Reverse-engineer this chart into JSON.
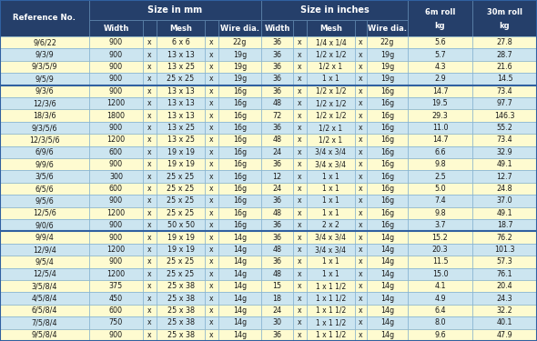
{
  "rows": [
    [
      "9/6/22",
      "900",
      "6 x 6",
      "22g",
      "36",
      "1/4 x 1/4",
      "22g",
      "5.6",
      "27.8"
    ],
    [
      "9/3/9",
      "900",
      "13 x 13",
      "19g",
      "36",
      "1/2 x 1/2",
      "19g",
      "5.7",
      "28.7"
    ],
    [
      "9/3/5/9",
      "900",
      "13 x 25",
      "19g",
      "36",
      "1/2 x 1",
      "19g",
      "4.3",
      "21.6"
    ],
    [
      "9/5/9",
      "900",
      "25 x 25",
      "19g",
      "36",
      "1 x 1",
      "19g",
      "2.9",
      "14.5"
    ],
    [
      "9/3/6",
      "900",
      "13 x 13",
      "16g",
      "36",
      "1/2 x 1/2",
      "16g",
      "14.7",
      "73.4"
    ],
    [
      "12/3/6",
      "1200",
      "13 x 13",
      "16g",
      "48",
      "1/2 x 1/2",
      "16g",
      "19.5",
      "97.7"
    ],
    [
      "18/3/6",
      "1800",
      "13 x 13",
      "16g",
      "72",
      "1/2 x 1/2",
      "16g",
      "29.3",
      "146.3"
    ],
    [
      "9/3/5/6",
      "900",
      "13 x 25",
      "16g",
      "36",
      "1/2 x 1",
      "16g",
      "11.0",
      "55.2"
    ],
    [
      "12/3/5/6",
      "1200",
      "13 x 25",
      "16g",
      "48",
      "1/2 x 1",
      "16g",
      "14.7",
      "73.4"
    ],
    [
      "6/9/6",
      "600",
      "19 x 19",
      "16g",
      "24",
      "3/4 x 3/4",
      "16g",
      "6.6",
      "32.9"
    ],
    [
      "9/9/6",
      "900",
      "19 x 19",
      "16g",
      "36",
      "3/4 x 3/4",
      "16g",
      "9.8",
      "49.1"
    ],
    [
      "3/5/6",
      "300",
      "25 x 25",
      "16g",
      "12",
      "1 x 1",
      "16g",
      "2.5",
      "12.7"
    ],
    [
      "6/5/6",
      "600",
      "25 x 25",
      "16g",
      "24",
      "1 x 1",
      "16g",
      "5.0",
      "24.8"
    ],
    [
      "9/5/6",
      "900",
      "25 x 25",
      "16g",
      "36",
      "1 x 1",
      "16g",
      "7.4",
      "37.0"
    ],
    [
      "12/5/6",
      "1200",
      "25 x 25",
      "16g",
      "48",
      "1 x 1",
      "16g",
      "9.8",
      "49.1"
    ],
    [
      "9/0/6",
      "900",
      "50 x 50",
      "16g",
      "36",
      "2 x 2",
      "16g",
      "3.7",
      "18.7"
    ],
    [
      "9/9/4",
      "900",
      "19 x 19",
      "14g",
      "36",
      "3/4 x 3/4",
      "14g",
      "15.2",
      "76.2"
    ],
    [
      "12/9/4",
      "1200",
      "19 x 19",
      "14g",
      "48",
      "3/4 x 3/4",
      "14g",
      "20.3",
      "101.3"
    ],
    [
      "9/5/4",
      "900",
      "25 x 25",
      "14g",
      "36",
      "1 x 1",
      "14g",
      "11.5",
      "57.3"
    ],
    [
      "12/5/4",
      "1200",
      "25 x 25",
      "14g",
      "48",
      "1 x 1",
      "14g",
      "15.0",
      "76.1"
    ],
    [
      "3/5/8/4",
      "375",
      "25 x 38",
      "14g",
      "15",
      "1 x 1 1/2",
      "14g",
      "4.1",
      "20.4"
    ],
    [
      "4/5/8/4",
      "450",
      "25 x 38",
      "14g",
      "18",
      "1 x 1 1/2",
      "14g",
      "4.9",
      "24.3"
    ],
    [
      "6/5/8/4",
      "600",
      "25 x 38",
      "14g",
      "24",
      "1 x 1 1/2",
      "14g",
      "6.4",
      "32.2"
    ],
    [
      "7/5/8/4",
      "750",
      "25 x 38",
      "14g",
      "30",
      "1 x 1 1/2",
      "14g",
      "8.0",
      "40.1"
    ],
    [
      "9/5/8/4",
      "900",
      "25 x 38",
      "14g",
      "36",
      "1 x 1 1/2",
      "14g",
      "9.6",
      "47.9"
    ]
  ],
  "header_bg": "#253f6a",
  "row_yellow": "#fefbd0",
  "row_blue": "#cce5f0",
  "grid_color": "#7aabcc",
  "text_dark": "#1a1a1a",
  "text_white": "#ffffff",
  "group_breaks": [
    4,
    16
  ],
  "row_colors": [
    "#fefbd0",
    "#cce5f0",
    "#fefbd0",
    "#cce5f0",
    "#fefbd0",
    "#cce5f0",
    "#fefbd0",
    "#cce5f0",
    "#fefbd0",
    "#cce5f0",
    "#fefbd0",
    "#cce5f0",
    "#fefbd0",
    "#cce5f0",
    "#fefbd0",
    "#cce5f0",
    "#fefbd0",
    "#cce5f0",
    "#fefbd0",
    "#cce5f0",
    "#fefbd0",
    "#cce5f0",
    "#fefbd0",
    "#cce5f0",
    "#fefbd0"
  ]
}
